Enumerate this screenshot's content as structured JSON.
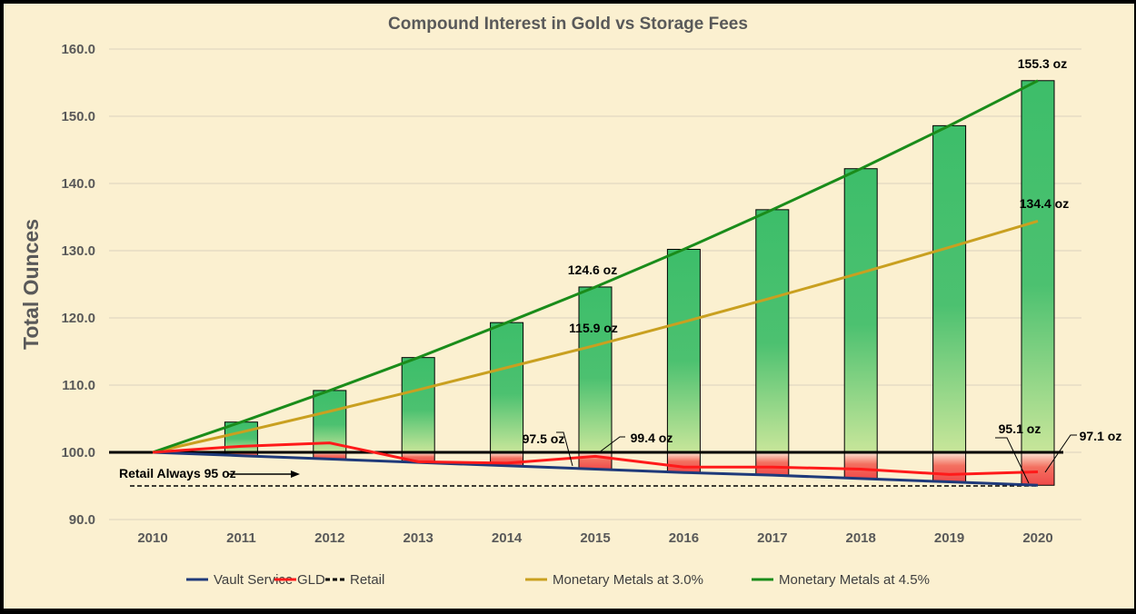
{
  "chart_data": {
    "type": "bar+line",
    "title": "Compound Interest in Gold vs Storage Fees",
    "ylabel": "Total Ounces",
    "xlabel": "",
    "ylim": [
      90,
      160
    ],
    "yticks": [
      "90.0",
      "100.0",
      "110.0",
      "120.0",
      "130.0",
      "140.0",
      "150.0",
      "160.0"
    ],
    "categories": [
      "2010",
      "2011",
      "2012",
      "2013",
      "2014",
      "2015",
      "2016",
      "2017",
      "2018",
      "2019",
      "2020"
    ],
    "grid": true,
    "legend_position": "bottom",
    "series": [
      {
        "name": "Vault Service",
        "type": "line",
        "color": "#1F3A7A",
        "values": [
          100,
          99.5,
          99.0,
          98.5,
          98.0,
          97.5,
          97.0,
          96.6,
          96.1,
          95.6,
          95.1
        ]
      },
      {
        "name": "GLD",
        "type": "line",
        "color": "#FF1A1A",
        "values": [
          100,
          100.9,
          101.4,
          98.6,
          98.4,
          99.4,
          97.8,
          97.8,
          97.5,
          96.7,
          97.1
        ]
      },
      {
        "name": "Retail",
        "type": "line",
        "dashed": true,
        "color": "#000000",
        "values": [
          95,
          95,
          95,
          95,
          95,
          95,
          95,
          95,
          95,
          95,
          95
        ]
      },
      {
        "name": "Monetary Metals at 3.0%",
        "type": "line",
        "color": "#C9A020",
        "values": [
          100,
          103.0,
          106.1,
          109.3,
          112.6,
          115.9,
          119.4,
          123.0,
          126.7,
          130.5,
          134.4
        ]
      },
      {
        "name": "Monetary Metals at 4.5%",
        "type": "line",
        "color": "#1A8C1A",
        "values": [
          100,
          104.5,
          109.2,
          114.1,
          119.3,
          124.6,
          130.2,
          136.1,
          142.2,
          148.6,
          155.3
        ]
      }
    ],
    "bars_note_colors": {
      "gain": "#3DBE6A",
      "loss": "#F04A4A"
    },
    "reference_line": 100,
    "annotations": [
      {
        "text": "155.3 oz",
        "x": "2020",
        "y": 155.3
      },
      {
        "text": "134.4 oz",
        "x": "2020",
        "y": 134.4
      },
      {
        "text": "124.6 oz",
        "x": "2015",
        "y": 124.6
      },
      {
        "text": "115.9 oz",
        "x": "2015",
        "y": 115.9
      },
      {
        "text": "97.5 oz",
        "x": "2015",
        "y": 97.5
      },
      {
        "text": "99.4 oz",
        "x": "2015",
        "y": 99.4
      },
      {
        "text": "95.1 oz",
        "x": "2020",
        "y": 95.1
      },
      {
        "text": "97.1 oz",
        "x": "2020",
        "y": 97.1
      },
      {
        "text": "Retail Always 95 oz",
        "x": "2010",
        "y": 95
      }
    ]
  }
}
